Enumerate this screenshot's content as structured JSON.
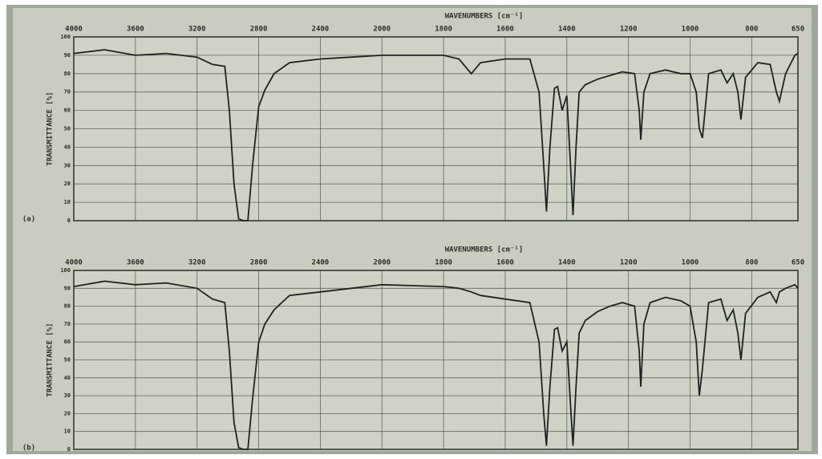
{
  "chart_data": [
    {
      "type": "line",
      "title": "WAVENUMBERS [cm⁻¹]",
      "y_label": "TRANSMITTANCE [%]",
      "panel_label": "(a)",
      "x": [
        4000,
        3800,
        3600,
        3400,
        3200,
        3100,
        3020,
        2990,
        2960,
        2930,
        2900,
        2870,
        2840,
        2800,
        2760,
        2700,
        2600,
        2400,
        2200,
        2000,
        1800,
        1750,
        1710,
        1680,
        1600,
        1520,
        1490,
        1475,
        1466,
        1455,
        1440,
        1430,
        1415,
        1400,
        1388,
        1380,
        1370,
        1360,
        1340,
        1300,
        1260,
        1220,
        1180,
        1165,
        1160,
        1150,
        1130,
        1080,
        1030,
        1000,
        980,
        970,
        960,
        940,
        900,
        880,
        860,
        845,
        835,
        820,
        780,
        740,
        720,
        710,
        690,
        660,
        650
      ],
      "values": [
        91,
        93,
        90,
        91,
        89,
        85,
        84,
        60,
        20,
        1,
        0,
        0,
        30,
        62,
        71,
        80,
        86,
        88,
        89,
        90,
        90,
        88,
        80,
        86,
        88,
        88,
        70,
        30,
        5,
        40,
        72,
        73,
        60,
        68,
        30,
        3,
        40,
        70,
        74,
        77,
        79,
        81,
        80,
        60,
        44,
        70,
        80,
        82,
        80,
        80,
        70,
        50,
        45,
        80,
        82,
        75,
        80,
        70,
        55,
        78,
        86,
        85,
        70,
        65,
        80,
        90,
        91
      ],
      "color": "#1e2420",
      "xlim": [
        4000,
        650
      ],
      "ylim": [
        0,
        100
      ],
      "xticks": [
        4000,
        3600,
        3200,
        2800,
        2400,
        2000,
        1800,
        1600,
        1400,
        1200,
        1000,
        800,
        650
      ],
      "yticks": [
        0,
        10,
        20,
        30,
        40,
        50,
        60,
        70,
        80,
        90,
        100
      ],
      "grid": true,
      "scale_change": 2000,
      "scale_ratio": 2
    },
    {
      "type": "line",
      "title": "WAVENUMBERS [cm⁻¹]",
      "y_label": "TRANSMITTANCE [%]",
      "panel_label": "(b)",
      "x": [
        4000,
        3800,
        3600,
        3400,
        3200,
        3100,
        3020,
        2990,
        2960,
        2930,
        2900,
        2870,
        2840,
        2800,
        2760,
        2700,
        2600,
        2400,
        2200,
        2000,
        1800,
        1750,
        1710,
        1680,
        1600,
        1520,
        1490,
        1475,
        1466,
        1455,
        1440,
        1430,
        1415,
        1400,
        1388,
        1380,
        1370,
        1360,
        1340,
        1300,
        1260,
        1220,
        1180,
        1165,
        1160,
        1150,
        1130,
        1080,
        1030,
        1000,
        980,
        970,
        960,
        940,
        900,
        880,
        860,
        845,
        835,
        820,
        780,
        740,
        720,
        710,
        690,
        660,
        650
      ],
      "values": [
        91,
        94,
        92,
        93,
        90,
        84,
        82,
        55,
        15,
        1,
        0,
        0,
        28,
        60,
        70,
        78,
        86,
        88,
        90,
        92,
        91,
        90,
        88,
        86,
        84,
        82,
        60,
        20,
        2,
        35,
        67,
        68,
        55,
        60,
        25,
        2,
        35,
        65,
        72,
        77,
        80,
        82,
        80,
        55,
        35,
        70,
        82,
        85,
        83,
        80,
        60,
        30,
        45,
        82,
        84,
        72,
        78,
        65,
        50,
        76,
        85,
        88,
        82,
        88,
        90,
        92,
        90
      ],
      "color": "#1e2420",
      "xlim": [
        4000,
        650
      ],
      "ylim": [
        0,
        100
      ],
      "xticks": [
        4000,
        3600,
        3200,
        2800,
        2400,
        2000,
        1800,
        1600,
        1400,
        1200,
        1000,
        800,
        650
      ],
      "yticks": [
        0,
        10,
        20,
        30,
        40,
        50,
        60,
        70,
        80,
        90,
        100
      ],
      "grid": true,
      "scale_change": 2000,
      "scale_ratio": 2
    }
  ]
}
